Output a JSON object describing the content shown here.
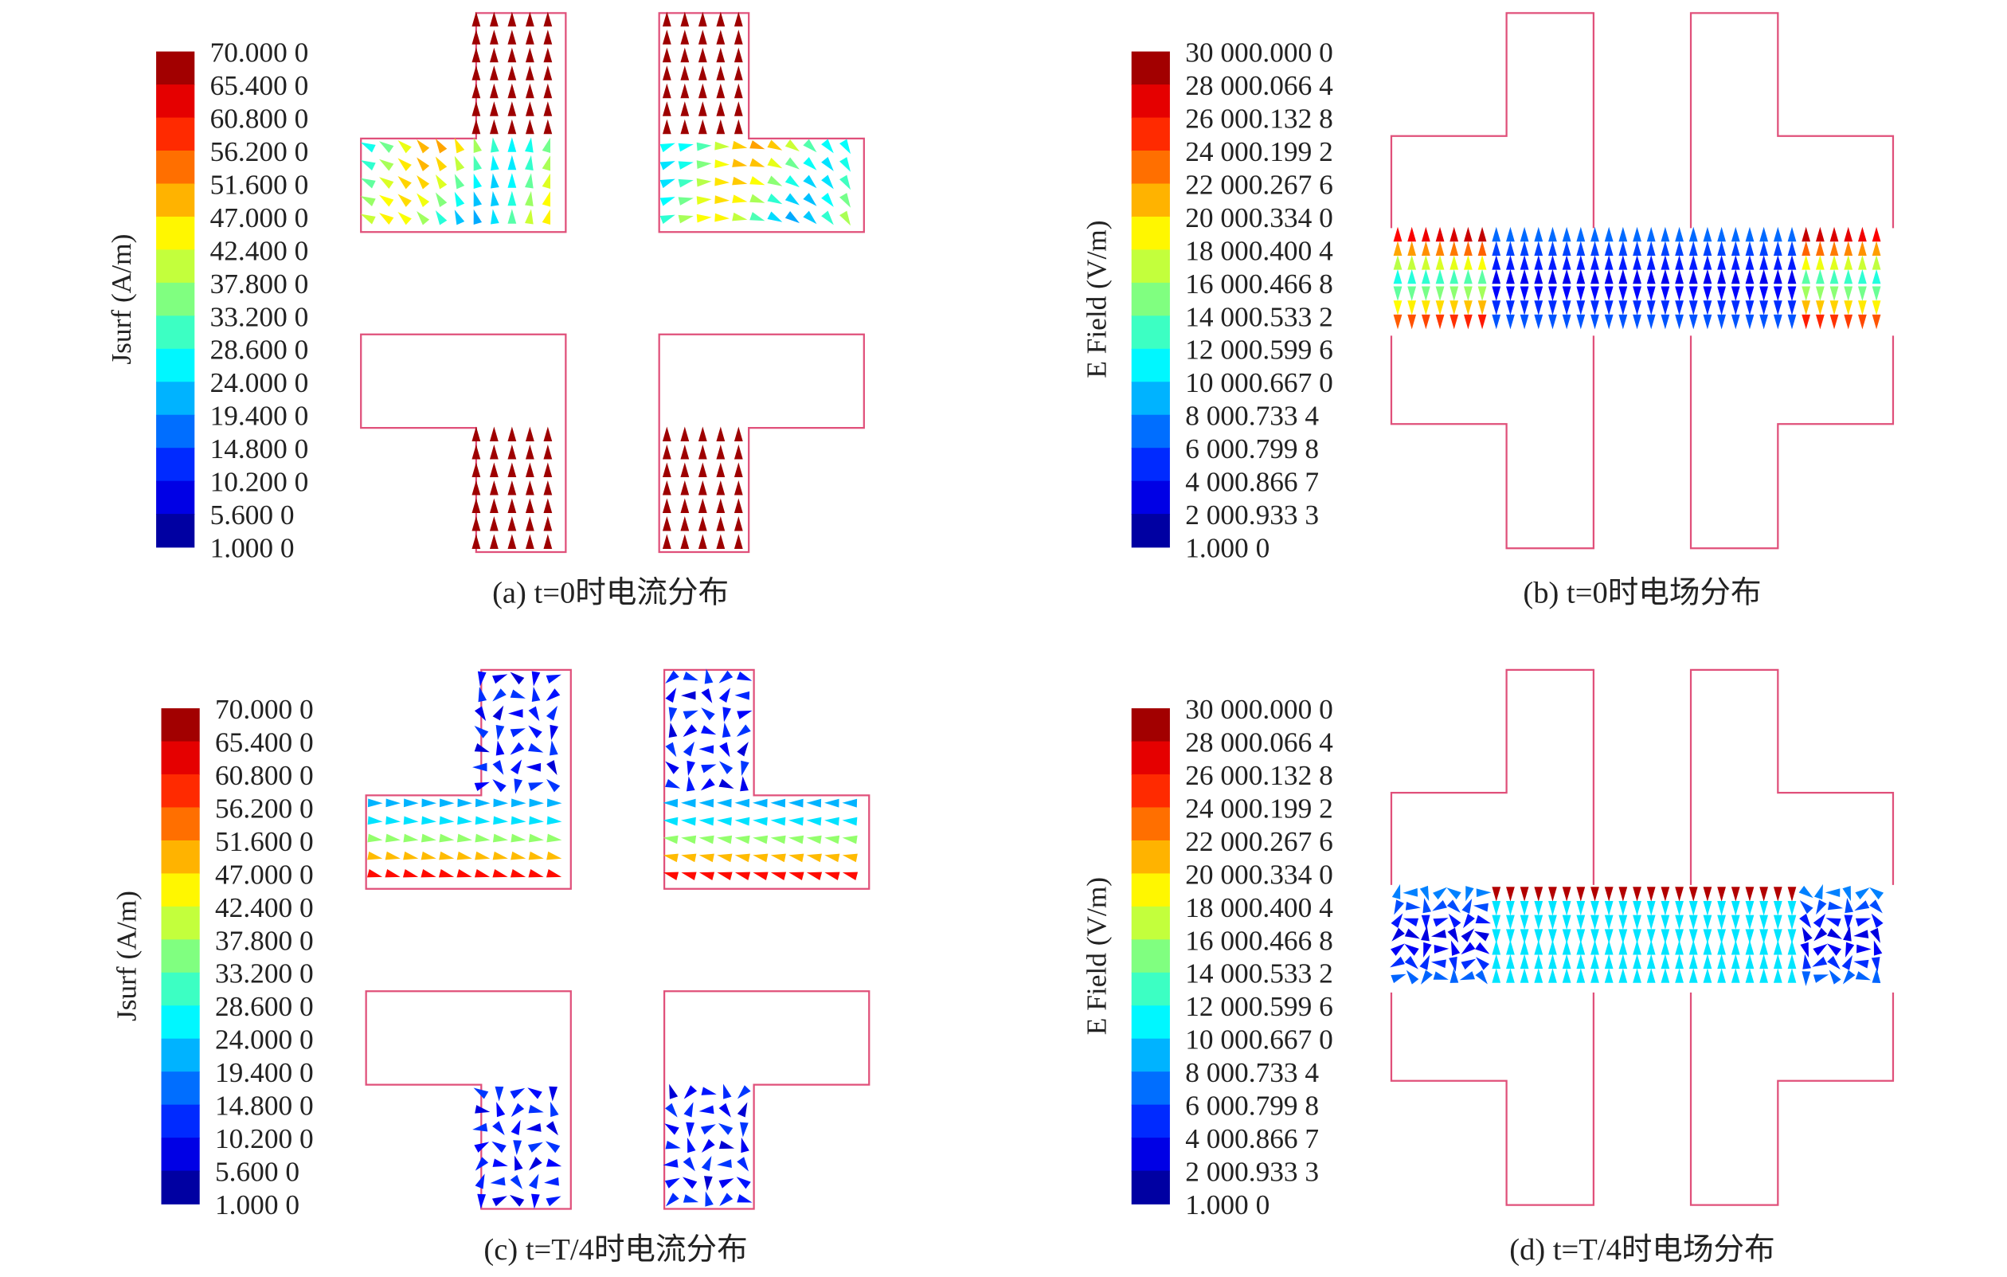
{
  "panels": [
    {
      "colorbar": {
        "title": "Jsurf (A/m)",
        "labels": [
          "70.000 0",
          "65.400 0",
          "60.800 0",
          "56.200 0",
          "51.600 0",
          "47.000 0",
          "42.400 0",
          "37.800 0",
          "33.200 0",
          "28.600 0",
          "24.000 0",
          "19.400 0",
          "14.800 0",
          "10.200 0",
          "5.600 0",
          "1.000 0"
        ]
      },
      "caption": "(a) t=0时电流分布"
    },
    {
      "colorbar": {
        "title": "E Field (V/m)",
        "labels": [
          "30 000.000 0",
          "28 000.066 4",
          "26 000.132 8",
          "24 000.199 2",
          "22 000.267 6",
          "20 000.334 0",
          "18 000.400 4",
          "16 000.466 8",
          "14 000.533 2",
          "12 000.599 6",
          "10 000.667 0",
          "8 000.733 4",
          "6 000.799 8",
          "4 000.866 7",
          "2 000.933 3",
          "1.000 0"
        ]
      },
      "caption": "(b) t=0时电场分布"
    },
    {
      "colorbar": {
        "title": "Jsurf (A/m)",
        "labels": [
          "70.000 0",
          "65.400 0",
          "60.800 0",
          "56.200 0",
          "51.600 0",
          "47.000 0",
          "42.400 0",
          "37.800 0",
          "33.200 0",
          "28.600 0",
          "24.000 0",
          "19.400 0",
          "14.800 0",
          "10.200 0",
          "5.600 0",
          "1.000 0"
        ]
      },
      "caption": "(c) t=T/4时电流分布"
    },
    {
      "colorbar": {
        "title": "E Field (V/m)",
        "labels": [
          "30 000.000 0",
          "28 000.066 4",
          "26 000.132 8",
          "24 000.199 2",
          "22 000.267 6",
          "20 000.334 0",
          "18 000.400 4",
          "16 000.466 8",
          "14 000.533 2",
          "12 000.599 6",
          "10 000.667 0",
          "8 000.733 4",
          "6 000.799 8",
          "4 000.866 7",
          "2 000.933 3",
          "1.000 0"
        ]
      },
      "caption": "(d) t=T/4时电场分布"
    }
  ]
}
